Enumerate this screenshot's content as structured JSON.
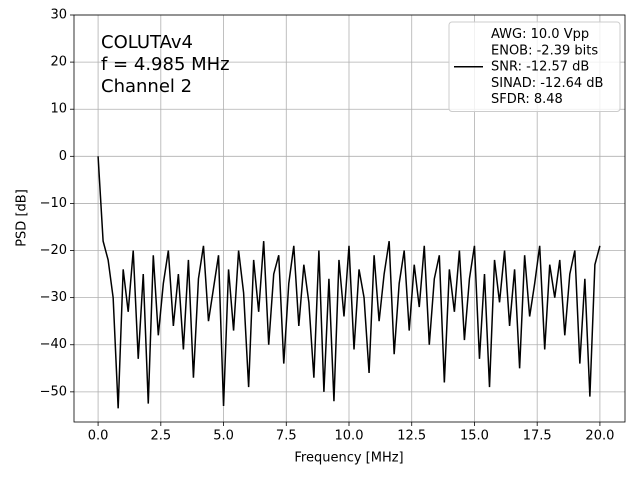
{
  "chart_data": {
    "type": "line",
    "xlabel": "Frequency [MHz]",
    "ylabel": "PSD [dB]",
    "annotation": [
      "COLUTAv4",
      "f = 4.985 MHz",
      "Channel 2"
    ],
    "xlim": [
      -0.96,
      21.0
    ],
    "ylim": [
      -56.4,
      30
    ],
    "xticks": [
      {
        "value": 0,
        "label": "0.0"
      },
      2.5,
      {
        "value": 5,
        "label": "5.0"
      },
      7.5,
      {
        "value": 10,
        "label": "10.0"
      },
      12.5,
      {
        "value": 15,
        "label": "15.0"
      },
      17.5,
      {
        "value": 20,
        "label": "20.0"
      }
    ],
    "yticks": [
      {
        "value": -50,
        "label": "−50"
      },
      {
        "value": -40,
        "label": "−40"
      },
      {
        "value": -30,
        "label": "−30"
      },
      {
        "value": -20,
        "label": "−20"
      },
      {
        "value": -10,
        "label": "−10"
      },
      0,
      10,
      20,
      30
    ],
    "grid": true,
    "legend": "upper right",
    "x": [
      0,
      0.2,
      0.4,
      0.6,
      0.8,
      1,
      1.2,
      1.4,
      1.6,
      1.8,
      2,
      2.2,
      2.4,
      2.6,
      2.8,
      3,
      3.2,
      3.4,
      3.6,
      3.8,
      4,
      4.2,
      4.4,
      4.6,
      4.8,
      5,
      5.2,
      5.4,
      5.6,
      5.8,
      6,
      6.2,
      6.4,
      6.6,
      6.8,
      7,
      7.2,
      7.4,
      7.6,
      7.8,
      8,
      8.2,
      8.4,
      8.6,
      8.8,
      9,
      9.2,
      9.4,
      9.6,
      9.8,
      10,
      10.2,
      10.4,
      10.6,
      10.8,
      11,
      11.2,
      11.4,
      11.6,
      11.8,
      12,
      12.2,
      12.4,
      12.6,
      12.8,
      13,
      13.2,
      13.4,
      13.6,
      13.8,
      14,
      14.2,
      14.4,
      14.6,
      14.8,
      15,
      15.2,
      15.4,
      15.6,
      15.8,
      16,
      16.2,
      16.4,
      16.6,
      16.8,
      17,
      17.2,
      17.4,
      17.6,
      17.8,
      18,
      18.2,
      18.4,
      18.6,
      18.8,
      19,
      19.2,
      19.4,
      19.6,
      19.8,
      20
    ],
    "series": [
      {
        "name": "AWG: 10.0 Vpp\nENOB: -2.39 bits\nSNR: -12.57 dB\nSINAD: -12.64 dB\nSFDR: 8.48",
        "color": "#000000",
        "values": [
          0,
          -18,
          -22,
          -30,
          -53.5,
          -24,
          -33,
          -20,
          -43,
          -25,
          -52.5,
          -21,
          -38,
          -27,
          -20,
          -36,
          -25,
          -41,
          -22,
          -47,
          -26,
          -19,
          -35,
          -28,
          -21,
          -53,
          -24,
          -37,
          -20,
          -29,
          -49,
          -22,
          -33,
          -18,
          -40,
          -25,
          -21,
          -44,
          -27,
          -19,
          -36,
          -23,
          -31,
          -47,
          -20,
          -50,
          -26,
          -52,
          -22,
          -34,
          -19,
          -41,
          -24,
          -30,
          -46,
          -21,
          -35,
          -25,
          -18,
          -42,
          -27,
          -20,
          -37,
          -23,
          -32,
          -19,
          -40,
          -26,
          -21,
          -48,
          -24,
          -33,
          -20,
          -39,
          -26,
          -19,
          -43,
          -25,
          -49,
          -22,
          -31,
          -20,
          -36,
          -24,
          -45,
          -21,
          -34,
          -27,
          -19,
          -41,
          -23,
          -30,
          -22,
          -38,
          -25,
          -20,
          -44,
          -26,
          -51,
          -23,
          -19
        ]
      }
    ]
  }
}
